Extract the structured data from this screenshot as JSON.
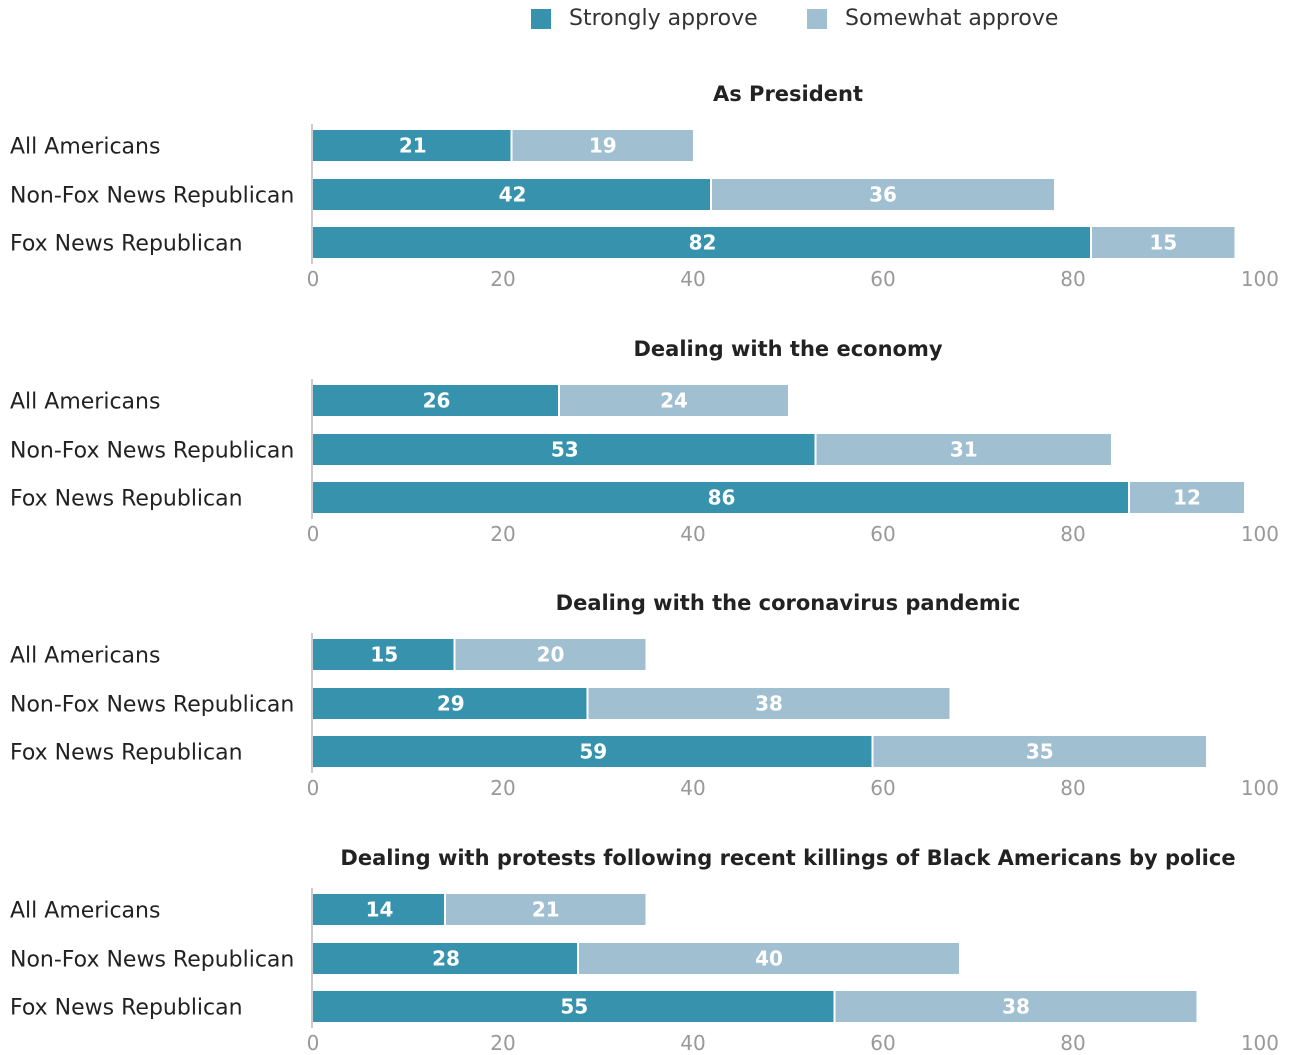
{
  "legend": {
    "strongly": "Strongly approve",
    "somewhat": "Somewhat approve"
  },
  "colors": {
    "strongly": "#3692ad",
    "somewhat": "#a0bfd0",
    "axis": "#cccccc",
    "tick_text": "#999999",
    "label_text": "#222222",
    "bar_text": "#ffffff"
  },
  "chart_data": [
    {
      "type": "bar",
      "orientation": "horizontal",
      "stacked": true,
      "title": "As President",
      "categories": [
        "All Americans",
        "Non-Fox News Republican",
        "Fox News Republican"
      ],
      "series": [
        {
          "name": "Strongly approve",
          "values": [
            21,
            42,
            82
          ]
        },
        {
          "name": "Somewhat approve",
          "values": [
            19,
            36,
            15
          ]
        }
      ],
      "xlim": [
        0,
        100
      ],
      "xticks": [
        "0",
        "20",
        "40",
        "60",
        "80",
        "100"
      ]
    },
    {
      "type": "bar",
      "orientation": "horizontal",
      "stacked": true,
      "title": "Dealing with the economy",
      "categories": [
        "All Americans",
        "Non-Fox News Republican",
        "Fox News Republican"
      ],
      "series": [
        {
          "name": "Strongly approve",
          "values": [
            26,
            53,
            86
          ]
        },
        {
          "name": "Somewhat approve",
          "values": [
            24,
            31,
            12
          ]
        }
      ],
      "xlim": [
        0,
        100
      ],
      "xticks": [
        "0",
        "20",
        "40",
        "60",
        "80",
        "100"
      ]
    },
    {
      "type": "bar",
      "orientation": "horizontal",
      "stacked": true,
      "title": "Dealing with the coronavirus pandemic",
      "categories": [
        "All Americans",
        "Non-Fox News Republican",
        "Fox News Republican"
      ],
      "series": [
        {
          "name": "Strongly approve",
          "values": [
            15,
            29,
            59
          ]
        },
        {
          "name": "Somewhat approve",
          "values": [
            20,
            38,
            35
          ]
        }
      ],
      "xlim": [
        0,
        100
      ],
      "xticks": [
        "0",
        "20",
        "40",
        "60",
        "80",
        "100"
      ]
    },
    {
      "type": "bar",
      "orientation": "horizontal",
      "stacked": true,
      "title": "Dealing with protests following recent killings of Black Americans by police",
      "categories": [
        "All Americans",
        "Non-Fox News Republican",
        "Fox News Republican"
      ],
      "series": [
        {
          "name": "Strongly approve",
          "values": [
            14,
            28,
            55
          ]
        },
        {
          "name": "Somewhat approve",
          "values": [
            21,
            40,
            38
          ]
        }
      ],
      "xlim": [
        0,
        100
      ],
      "xticks": [
        "0",
        "20",
        "40",
        "60",
        "80",
        "100"
      ]
    }
  ]
}
